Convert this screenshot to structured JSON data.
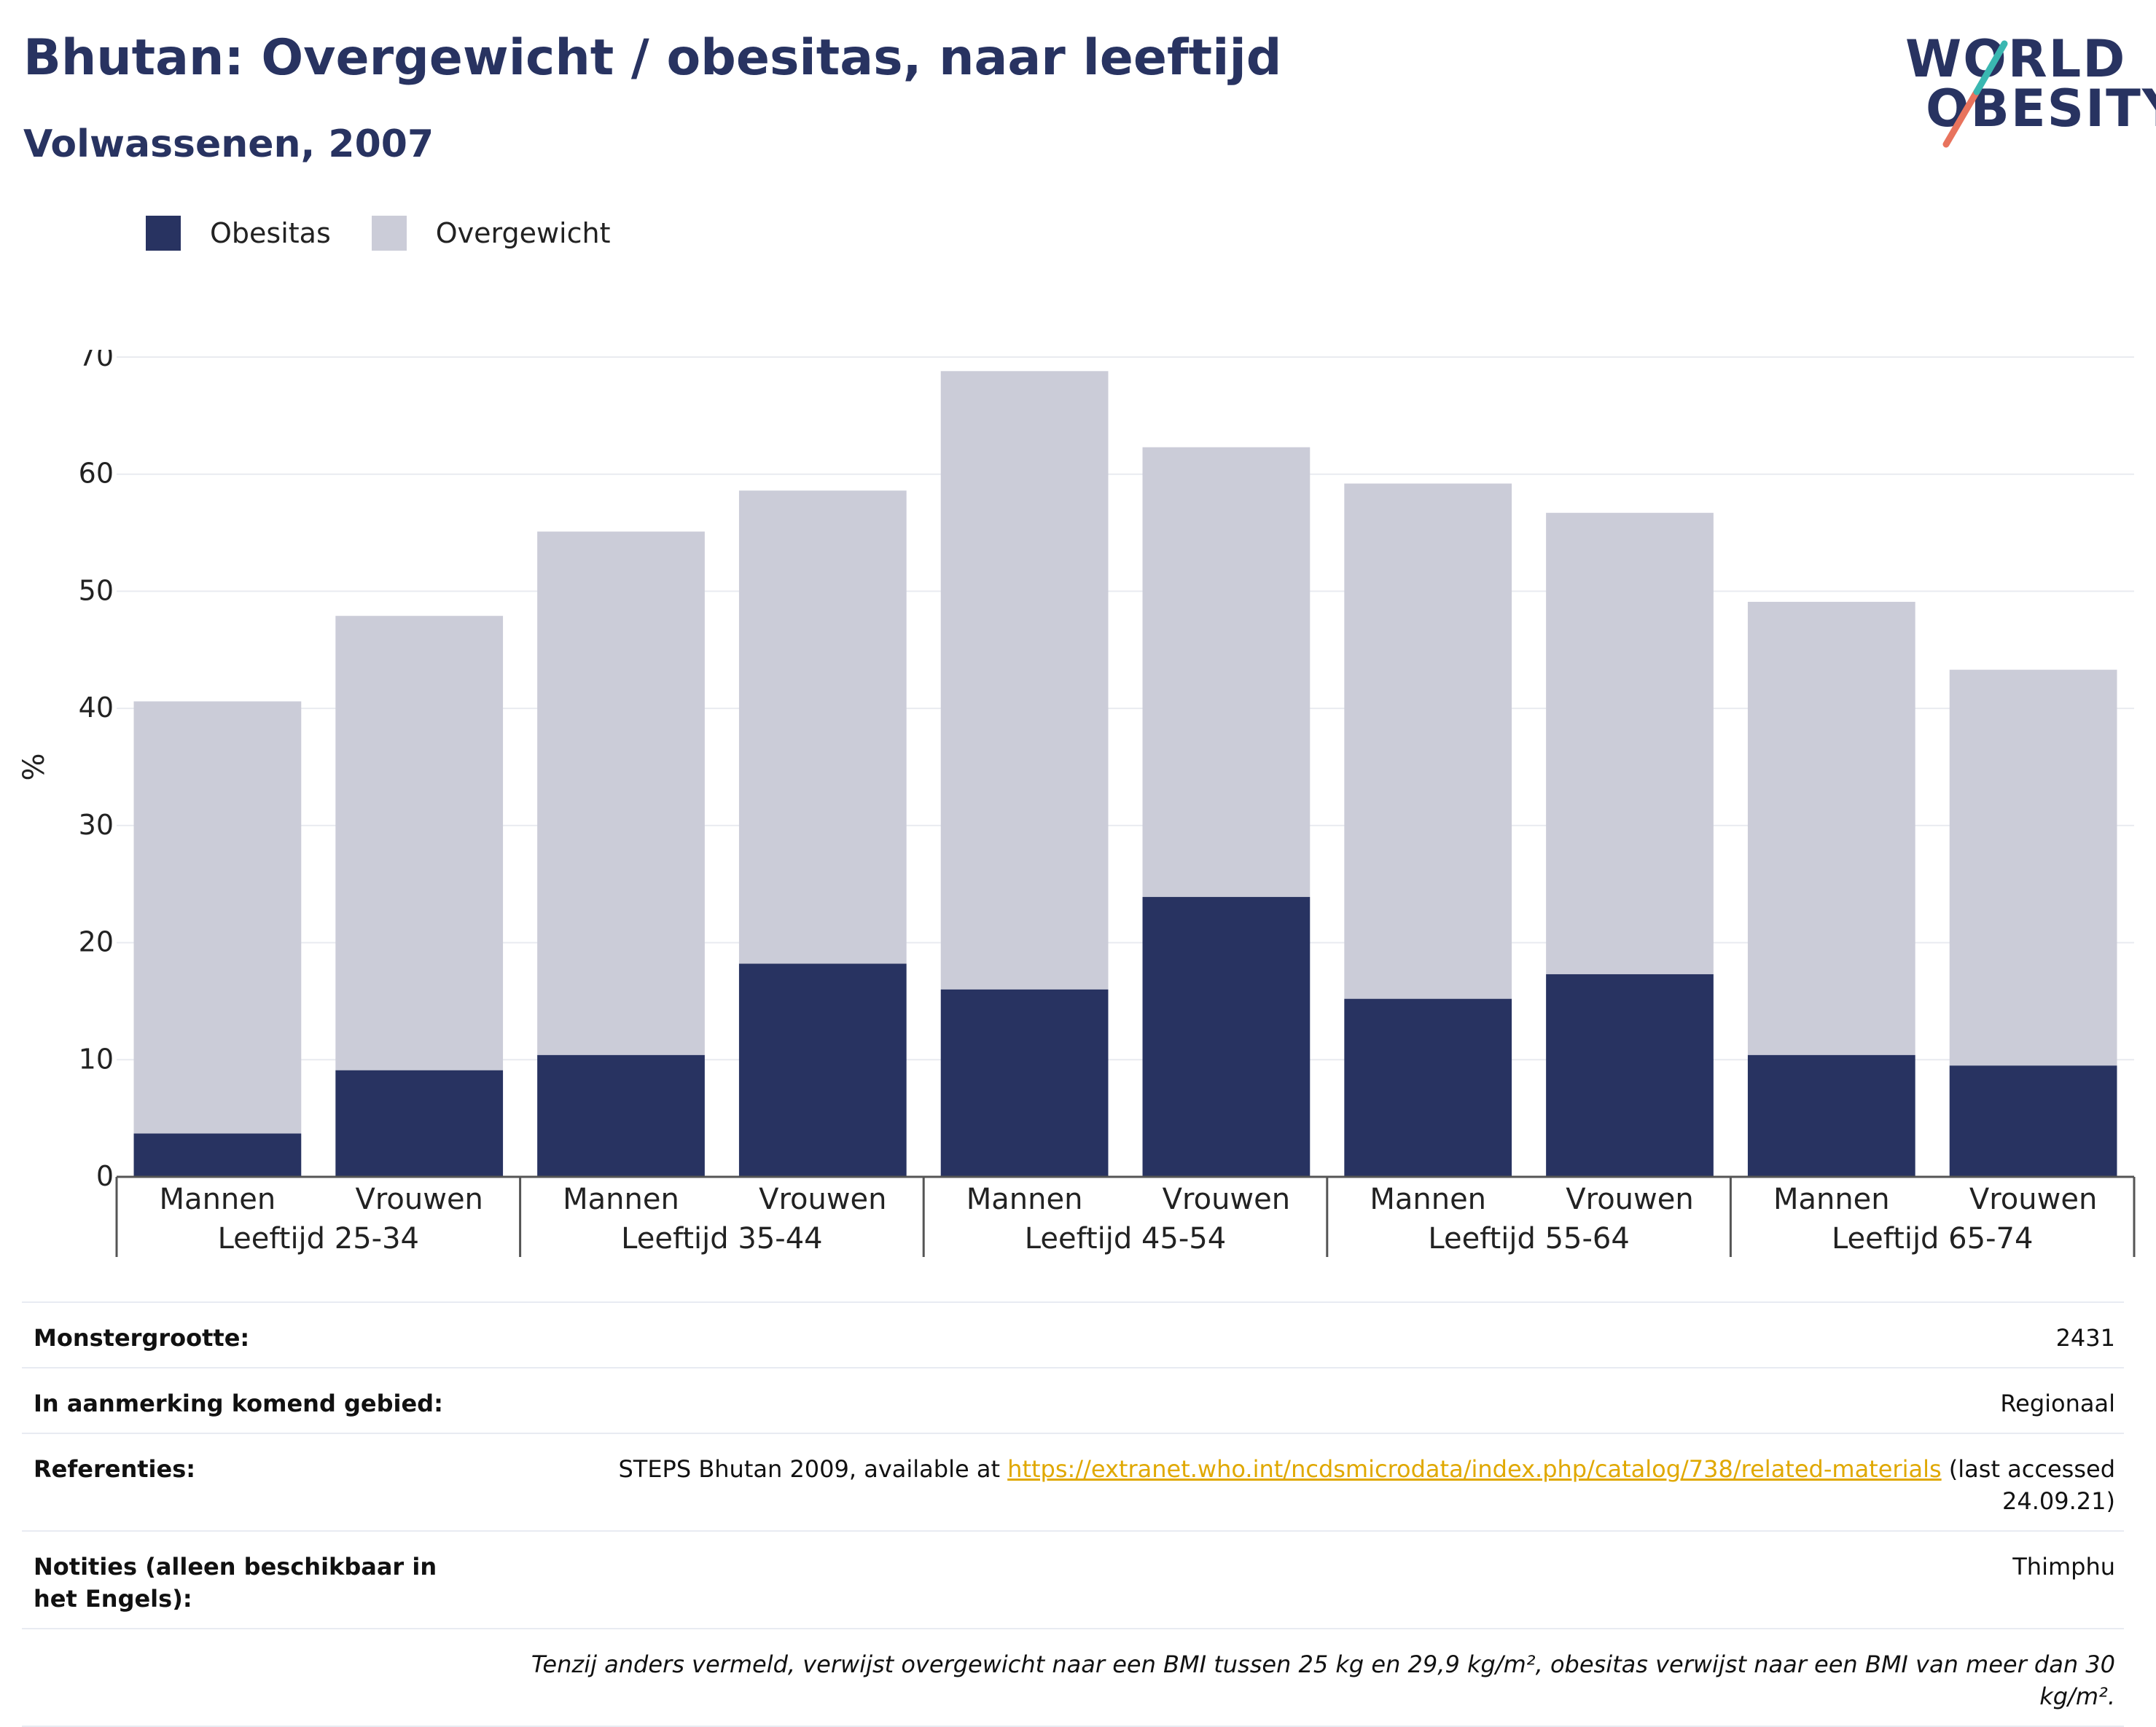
{
  "title": "Bhutan: Overgewicht / obesitas, naar leeftijd",
  "subtitle": "Volwassenen, 2007",
  "logo": {
    "line1": "WORLD",
    "line2": "OBESITY"
  },
  "colors": {
    "obesity": "#283361",
    "overweight": "#cbccd8",
    "title": "#283361",
    "link": "#e0a800",
    "accent_teal": "#3ab7b1",
    "accent_red": "#e8735d"
  },
  "legend": [
    {
      "label": "Obesitas",
      "color": "#283361"
    },
    {
      "label": "Overgewicht",
      "color": "#cbccd8"
    }
  ],
  "chart_data": {
    "type": "bar",
    "stacked": true,
    "ylabel": "%",
    "ylim": [
      0,
      70
    ],
    "yticks": [
      0,
      10,
      20,
      30,
      40,
      50,
      60,
      70
    ],
    "grid": true,
    "legend_position": "top-left",
    "groups": [
      "Leeftijd 25-34",
      "Leeftijd 35-44",
      "Leeftijd 45-54",
      "Leeftijd 55-64",
      "Leeftijd 65-74"
    ],
    "categories": [
      "Mannen",
      "Vrouwen",
      "Mannen",
      "Vrouwen",
      "Mannen",
      "Vrouwen",
      "Mannen",
      "Vrouwen",
      "Mannen",
      "Vrouwen"
    ],
    "series": [
      {
        "name": "Obesitas",
        "values": [
          3.7,
          9.1,
          10.4,
          18.2,
          16.0,
          23.9,
          15.2,
          17.3,
          10.4,
          9.5
        ]
      },
      {
        "name": "Overgewicht",
        "values": [
          36.9,
          38.8,
          44.7,
          40.4,
          52.8,
          38.4,
          44.0,
          39.4,
          38.7,
          33.8
        ]
      }
    ]
  },
  "info": {
    "sample_size_label": "Monstergrootte:",
    "sample_size": "2431",
    "area_label": "In aanmerking komend gebied:",
    "area": "Regionaal",
    "references_label": "Referenties:",
    "references_pre": "STEPS Bhutan 2009, available at ",
    "references_link": "https://extranet.who.int/ncdsmicrodata/index.php/catalog/738/related-materials",
    "references_post": " (last accessed 24.09.21)",
    "notes_label": "Notities (alleen beschikbaar in het Engels):",
    "notes": "Thimphu",
    "footnote": "Tenzij anders vermeld, verwijst overgewicht naar een BMI tussen 25 kg en 29,9 kg/m², obesitas verwijst naar een BMI van meer dan 30 kg/m²."
  }
}
